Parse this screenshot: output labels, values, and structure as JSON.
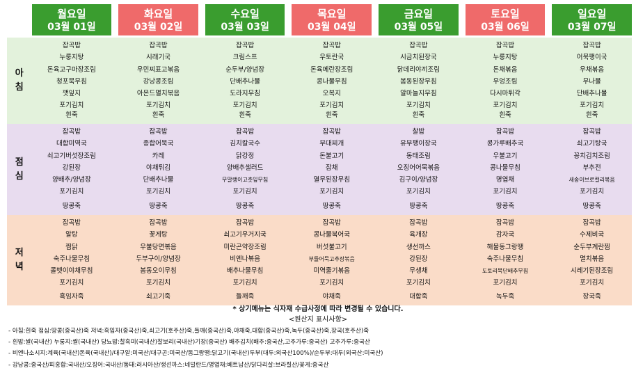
{
  "days": [
    {
      "day": "월요일",
      "date": "03월 01일",
      "color": "#3a9d2f"
    },
    {
      "day": "화요일",
      "date": "03월 02일",
      "color": "#ef6a6a"
    },
    {
      "day": "수요일",
      "date": "03월 03일",
      "color": "#3a9d2f"
    },
    {
      "day": "목요일",
      "date": "03월 04일",
      "color": "#ef6a6a"
    },
    {
      "day": "금요일",
      "date": "03월 05일",
      "color": "#3a9d2f"
    },
    {
      "day": "토요일",
      "date": "03월 06일",
      "color": "#ef6a6a"
    },
    {
      "day": "일요일",
      "date": "03월 07일",
      "color": "#3a9d2f"
    }
  ],
  "meals": [
    {
      "key": "breakfast",
      "label": [
        "아",
        "침"
      ],
      "color": "#e3f2dc",
      "columns": [
        {
          "items": [
            "잡곡밥",
            "누룽지탕",
            "돈육고구마장조림",
            "청포묵무침",
            "깻잎지",
            "포기김치"
          ],
          "soup": "흰죽"
        },
        {
          "items": [
            "잡곡밥",
            "시래기국",
            "우민찌표고볶음",
            "강낭콩조림",
            "아몬드멸치볶음",
            "포기김치"
          ],
          "soup": "흰죽"
        },
        {
          "items": [
            "잡곡밥",
            "크림스프",
            "순두부/양념장",
            "단배추나물",
            "도라지무침",
            "포기김치"
          ],
          "soup": "흰죽"
        },
        {
          "items": [
            "잡곡밥",
            "우토란국",
            "돈육메란장조림",
            "콩나물무침",
            "오복지",
            "포기김치"
          ],
          "soup": "흰죽"
        },
        {
          "items": [
            "잡곡밥",
            "시금치된장국",
            "닭데리야끼조림",
            "봄동된장무침",
            "알마늘지무침",
            "포기김치"
          ],
          "soup": "흰죽"
        },
        {
          "items": [
            "잡곡밥",
            "누룽지탕",
            "돈채볶음",
            "우엉조림",
            "다시마튀각",
            "포기김치"
          ],
          "soup": "흰죽"
        },
        {
          "items": [
            "잡곡밥",
            "어묵팽이국",
            "우채볶음",
            "무나물",
            "단배추나물",
            "포기김치"
          ],
          "soup": "흰죽"
        }
      ]
    },
    {
      "key": "lunch",
      "label": [
        "점",
        "심"
      ],
      "color": "#e8dcef",
      "columns": [
        {
          "items": [
            "잡곡밥",
            "대합미역국",
            "쇠고기버섯장조림",
            "강된장",
            "양배추/양념장",
            "포기김치"
          ],
          "soup": "땅콩죽"
        },
        {
          "items": [
            "잡곡밥",
            "종합어묵국",
            "카레",
            "야채튀김",
            "단배추나물",
            "포기김치"
          ],
          "soup": "땅콩죽"
        },
        {
          "items": [
            "잡곡밥",
            "김치칼국수",
            "닭강정",
            "양배추샐러드",
            "무말랭이고춧잎무침",
            "포기김치"
          ],
          "soup": "땅콩죽"
        },
        {
          "items": [
            "잡곡밥",
            "부대찌개",
            "돈불고기",
            "잡채",
            "열무된장무침",
            "포기김치"
          ],
          "soup": "땅콩죽"
        },
        {
          "items": [
            "찰밥",
            "유부팽이장국",
            "동태조림",
            "오징어어묵볶음",
            "김구이/양념장",
            "포기김치"
          ],
          "soup": "땅콩죽"
        },
        {
          "items": [
            "잡곡밥",
            "콩가루배추국",
            "우불고기",
            "콩나물무침",
            "명엽채",
            "포기김치"
          ],
          "soup": "땅콩죽"
        },
        {
          "items": [
            "잡곡밥",
            "쇠고기탕국",
            "꽁치김치조림",
            "부추전",
            "새송이브로컬리볶음",
            "포기김치"
          ],
          "soup": "땅콩죽"
        }
      ]
    },
    {
      "key": "dinner",
      "label": [
        "저",
        "녁"
      ],
      "color": "#fadcc8",
      "columns": [
        {
          "items": [
            "잡곡밥",
            "알탕",
            "찜닭",
            "숙주나물무침",
            "콜벳이야채무침",
            "포기김치"
          ],
          "soup": "흑임자죽"
        },
        {
          "items": [
            "잡곡밥",
            "꽃게탕",
            "우불당면볶음",
            "두부구이/양념장",
            "봄동오이무침",
            "포기김치"
          ],
          "soup": "쇠고기죽"
        },
        {
          "items": [
            "잡곡밥",
            "쇠고기우거지국",
            "미란곤약장조림",
            "비엔나볶음",
            "배추나물무침",
            "포기김치"
          ],
          "soup": "들깨죽"
        },
        {
          "items": [
            "잡곡밥",
            "콩나물북어국",
            "버섯불고기",
            "부들어묵고추장볶음",
            "미역줄기볶음",
            "포기김치"
          ],
          "soup": "야채죽"
        },
        {
          "items": [
            "잡곡밥",
            "육개장",
            "생선까스",
            "강된장",
            "무생채",
            "포기김치"
          ],
          "soup": "대합죽"
        },
        {
          "items": [
            "잡곡밥",
            "감자국",
            "해물동그랑땡",
            "숙주나물무침",
            "도토리묵단배추무침",
            "포기김치"
          ],
          "soup": "녹두죽"
        },
        {
          "items": [
            "잡곡밥",
            "수제비국",
            "순두부계란찜",
            "멸치볶음",
            "시레기된장조림",
            "포기김치"
          ],
          "soup": "장국죽"
        }
      ]
    }
  ],
  "footer": {
    "notice": "* 상기메뉴는 식자재 수급사정에 따라 변경될 수 있습니다.",
    "origin_title": "<원산지 표시사항>",
    "lines": [
      "- 아침:흰죽 점심:땅콩(중국산)죽 저녁:흑임자(중국산)죽,쇠고기(호주산)죽,들깨(중국산)죽,야채죽,대합(중국산)죽,녹두(중국산)죽,장국(호주산)죽",
      "- 흰밥:쌀(국내산) 누룽지:쌀(국내산) 당뇨밥:찰흑미(국내산)찰보리(국내산)기장(중국산) 배추김치(배추:중국산,고추가루:중국산) 고추가루:중국산",
      "- 비엔나소시지:계육(국내산)돈육(국내산)/대구알:미국산/대구곤:미국산/동그랑땡:닭고기(국내산)두부(대두:외국산100%)/순두부:대두(외국산:미국산)",
      "- 강낭콩:중국산/피홍합:국내산/오징어:국내산/동태:러시아산/생선까스:네덜란드/명엽채:베트남산/닭다리살:브라질산/꽃게:중국산"
    ]
  }
}
